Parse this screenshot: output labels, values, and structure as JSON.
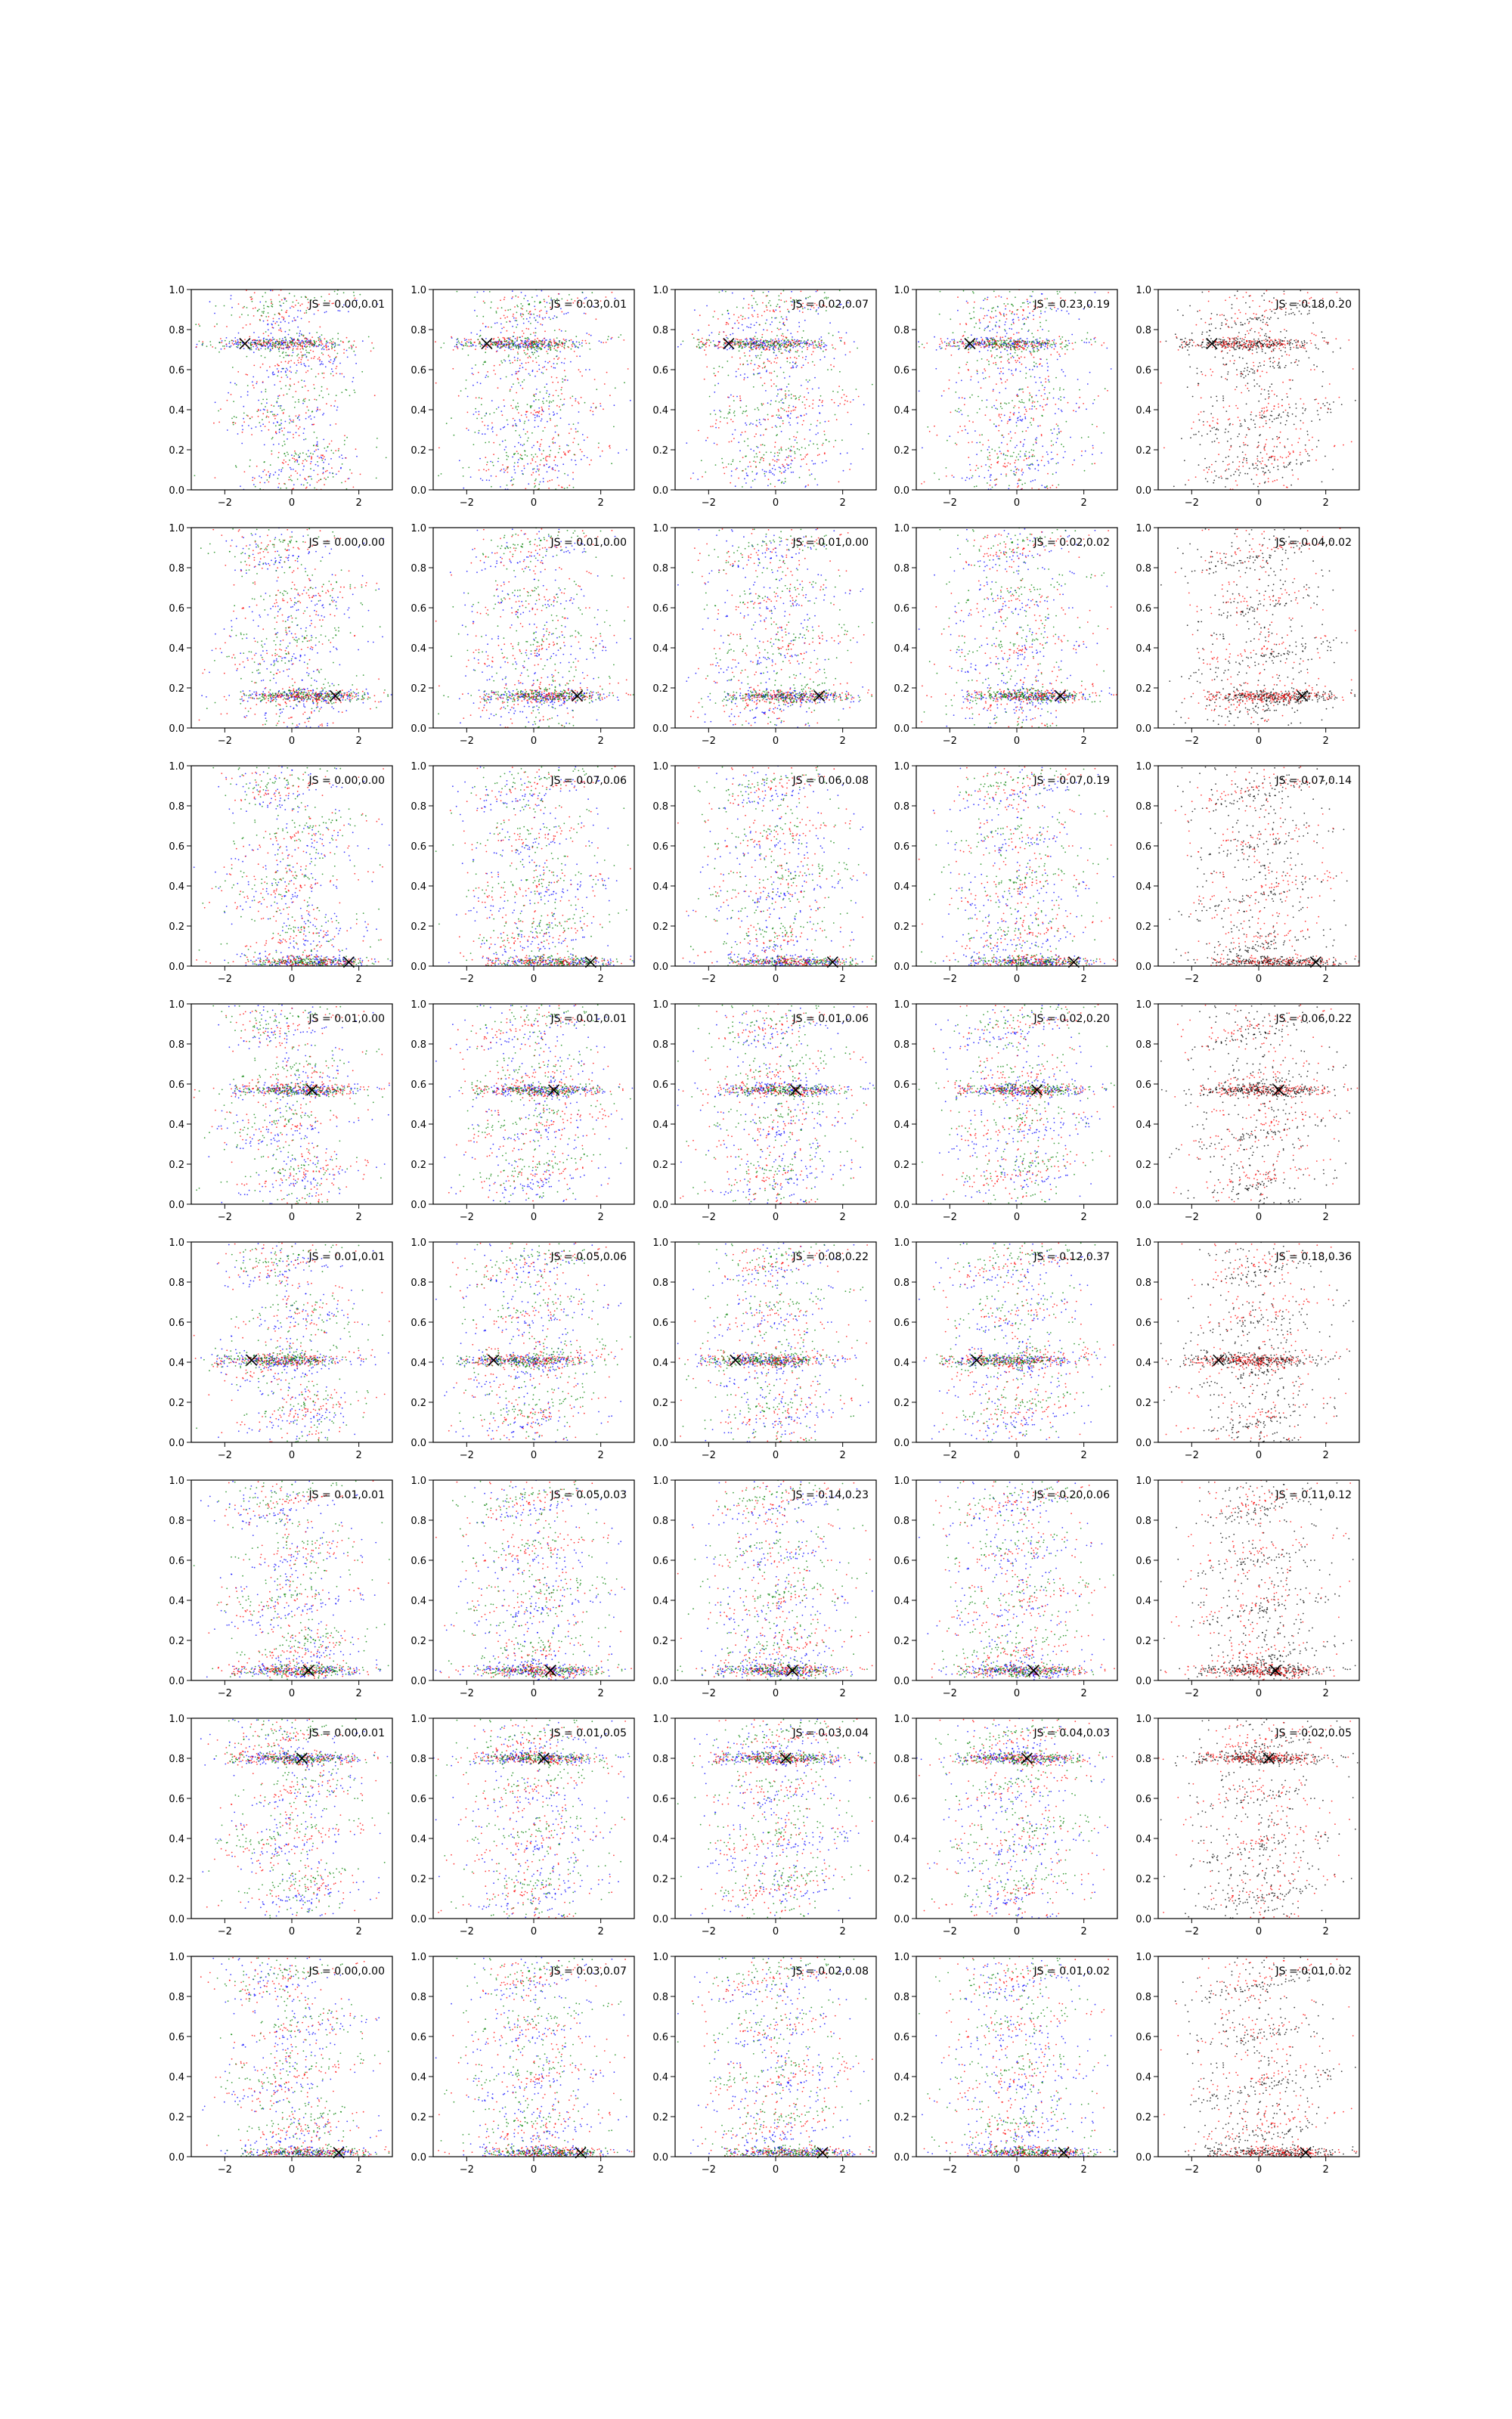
{
  "figure": {
    "rows": 8,
    "cols": 5,
    "series_colors": {
      "blue": "#0000ff",
      "red": "#ff0000",
      "green": "#008000",
      "black": "#000000"
    }
  },
  "chart_data": {
    "type": "scatter",
    "xlim": [
      -3,
      3
    ],
    "ylim": [
      0.0,
      1.0
    ],
    "xticks": [
      -2,
      0,
      2
    ],
    "xtick_labels": [
      "−2",
      "0",
      "2"
    ],
    "yticks": [
      0.0,
      0.2,
      0.4,
      0.6,
      0.8,
      1.0
    ],
    "ytick_labels": [
      "0.0",
      "0.2",
      "0.4",
      "0.6",
      "0.8",
      "1.0"
    ],
    "grid": false,
    "rows": [
      {
        "x_marker": [
          -1.4,
          0.73
        ],
        "js": [
          "JS = 0.00,0.01",
          "JS = 0.03,0.01",
          "JS = 0.02,0.07",
          "JS = 0.23,0.19",
          "JS = 0.18,0.20"
        ]
      },
      {
        "x_marker": [
          1.3,
          0.16
        ],
        "js": [
          "JS = 0.00,0.00",
          "JS = 0.01,0.00",
          "JS = 0.01,0.00",
          "JS = 0.02,0.02",
          "JS = 0.04,0.02"
        ]
      },
      {
        "x_marker": [
          1.7,
          0.02
        ],
        "js": [
          "JS = 0.00,0.00",
          "JS = 0.07,0.06",
          "JS = 0.06,0.08",
          "JS = 0.07,0.19",
          "JS = 0.07,0.14"
        ]
      },
      {
        "x_marker": [
          0.6,
          0.57
        ],
        "js": [
          "JS = 0.01,0.00",
          "JS = 0.01,0.01",
          "JS = 0.01,0.06",
          "JS = 0.02,0.20",
          "JS = 0.06,0.22"
        ]
      },
      {
        "x_marker": [
          -1.2,
          0.41
        ],
        "js": [
          "JS = 0.01,0.01",
          "JS = 0.05,0.06",
          "JS = 0.08,0.22",
          "JS = 0.12,0.37",
          "JS = 0.18,0.36"
        ]
      },
      {
        "x_marker": [
          0.5,
          0.05
        ],
        "js": [
          "JS = 0.01,0.01",
          "JS = 0.05,0.03",
          "JS = 0.14,0.23",
          "JS = 0.20,0.06",
          "JS = 0.11,0.12"
        ]
      },
      {
        "x_marker": [
          0.3,
          0.8
        ],
        "js": [
          "JS = 0.00,0.01",
          "JS = 0.01,0.05",
          "JS = 0.03,0.04",
          "JS = 0.04,0.03",
          "JS = 0.02,0.05"
        ]
      },
      {
        "x_marker": [
          1.4,
          0.02
        ],
        "js": [
          "JS = 0.00,0.00",
          "JS = 0.03,0.07",
          "JS = 0.02,0.08",
          "JS = 0.01,0.02",
          "JS = 0.01,0.02"
        ]
      }
    ],
    "column_series": [
      [
        "blue",
        "red",
        "green"
      ],
      [
        "blue",
        "red",
        "green"
      ],
      [
        "blue",
        "red",
        "green"
      ],
      [
        "blue",
        "red",
        "green"
      ],
      [
        "black",
        "red"
      ]
    ]
  }
}
